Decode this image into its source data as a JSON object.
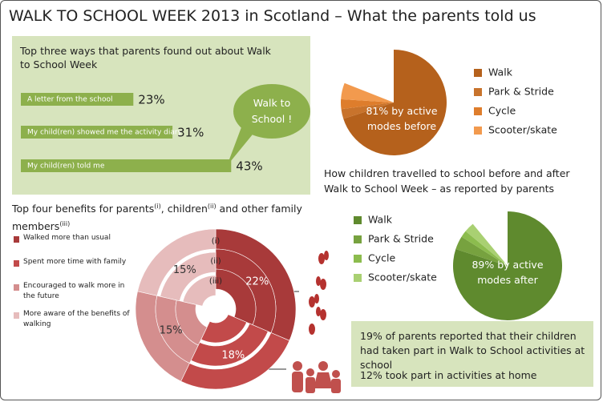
{
  "title": "WALK TO SCHOOL WEEK 2013 in Scotland – What the parents told us",
  "found_out": {
    "type": "bar",
    "title": "Top three ways that parents found out about Walk to School Week",
    "categories": [
      "A letter from the school",
      "My child(ren) showed me the activity diary",
      "My child(ren) told me"
    ],
    "values": [
      23,
      31,
      43
    ],
    "value_labels": [
      "23%",
      "31%",
      "43%"
    ],
    "color": "#8db04c"
  },
  "bubble": "Walk to School !",
  "before": {
    "type": "pie",
    "label": "81% by active modes before",
    "categories": [
      "Walk",
      "Park & Stride",
      "Cycle",
      "Scooter/skate"
    ],
    "values": [
      70,
      3,
      3,
      5
    ],
    "colors": [
      "#b5611c",
      "#c8732c",
      "#de7d2c",
      "#f29a4e"
    ]
  },
  "travel_heading": "How children travelled to school before and after Walk to School Week – as reported by parents",
  "after": {
    "type": "pie",
    "label": "89% by active modes after",
    "categories": [
      "Walk",
      "Park & Stride",
      "Cycle",
      "Scooter/skate"
    ],
    "values": [
      80,
      4,
      2,
      3
    ],
    "colors": [
      "#5f8a2e",
      "#77a23f",
      "#8cbc4e",
      "#a9d072"
    ]
  },
  "benefits": {
    "type": "donut",
    "heading": [
      "Top four benefits for parents",
      "(i)",
      ", children",
      "(ii)",
      " and other family members",
      "(iii)"
    ],
    "categories": [
      "Walked more than usual",
      "Spent more time with family",
      "Encouraged to walk more in the future",
      "More aware of the benefits of walking"
    ],
    "values": [
      22,
      18,
      15,
      15
    ],
    "value_labels": [
      "22%",
      "18%",
      "15%",
      "15%"
    ],
    "colors": [
      "#a83a3a",
      "#c24a4a",
      "#d48e8e",
      "#e6bcbc"
    ],
    "rings": [
      "(i)",
      "(ii)",
      "(iii)"
    ]
  },
  "notes": [
    "19% of parents reported that their children had taken part in Walk to School activities at school",
    "12% took part in activities at home"
  ]
}
